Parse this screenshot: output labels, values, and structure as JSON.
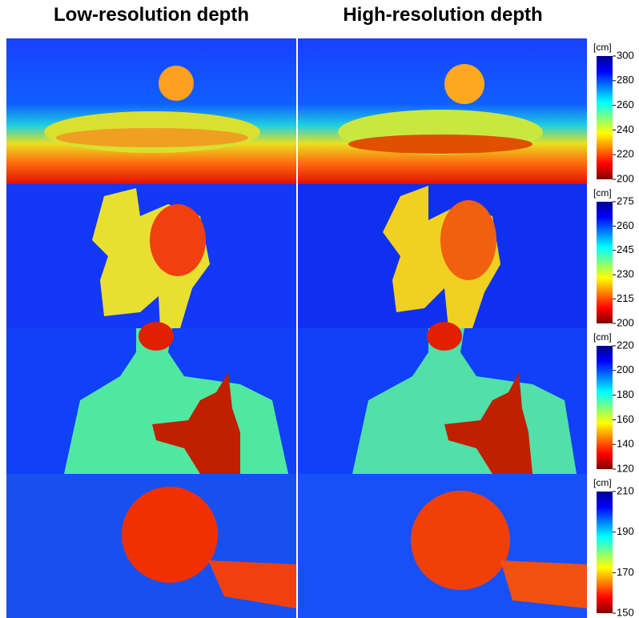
{
  "columns": [
    "Low-resolution depth",
    "High-resolution depth"
  ],
  "colorbars": [
    {
      "unit": "[cm]",
      "range": [
        200,
        300
      ],
      "ticks": [
        200,
        220,
        240,
        260,
        280,
        300
      ]
    },
    {
      "unit": "[cm]",
      "range": [
        200,
        275
      ],
      "ticks": [
        200,
        215,
        230,
        245,
        260,
        275
      ]
    },
    {
      "unit": "[cm]",
      "range": [
        120,
        220
      ],
      "ticks": [
        120,
        140,
        160,
        180,
        200,
        220
      ]
    },
    {
      "unit": "[cm]",
      "range": [
        150,
        210
      ],
      "ticks": [
        150,
        170,
        190,
        210
      ]
    }
  ]
}
